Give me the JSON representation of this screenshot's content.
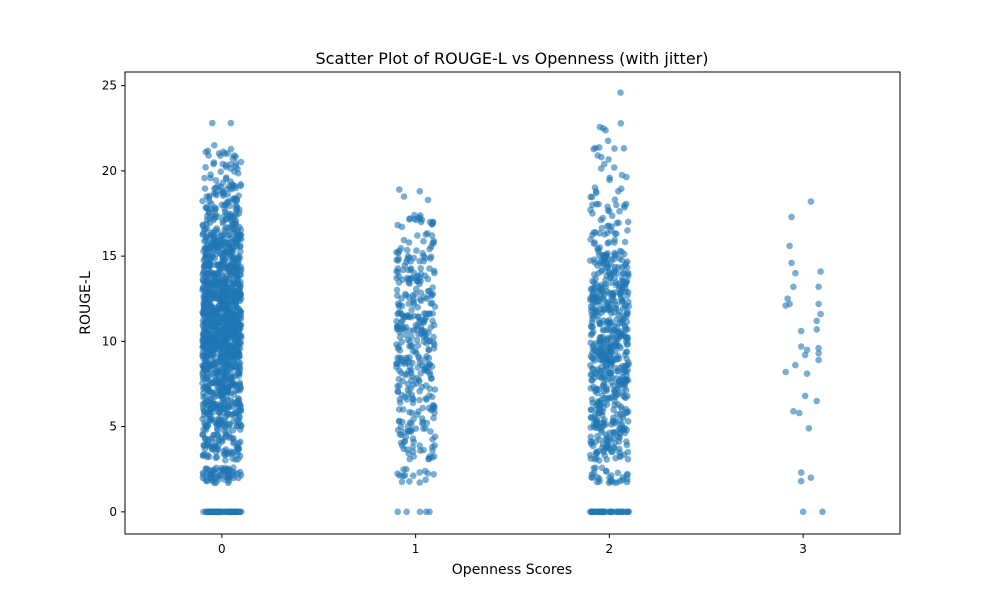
{
  "chart_data": {
    "type": "scatter",
    "title": "Scatter Plot of ROUGE-L vs Openness (with jitter)",
    "xlabel": "Openness Scores",
    "ylabel": "ROUGE-L",
    "x_ticks": [
      0,
      1,
      2,
      3
    ],
    "x_tick_labels": [
      "0",
      "1",
      "2",
      "3"
    ],
    "y_ticks": [
      0,
      5,
      10,
      15,
      20,
      25
    ],
    "y_tick_labels": [
      "0",
      "5",
      "10",
      "15",
      "20",
      "25"
    ],
    "xlim": [
      -0.5,
      3.5
    ],
    "ylim": [
      -1.3,
      25.8
    ],
    "jitter": 0.1,
    "grid": false,
    "marker_color": "#1f77b4",
    "marker_alpha": 0.6,
    "series": [
      {
        "category": 0,
        "count": 1500,
        "y_range": [
          0,
          22.8
        ],
        "zero_count": 60,
        "notable_points": [
          22.8,
          22.8,
          21.5,
          20.9,
          20.4,
          20.4,
          20.4,
          19.3,
          19.1
        ]
      },
      {
        "category": 1,
        "count": 380,
        "y_range": [
          0,
          18.9
        ],
        "zero_count": 5,
        "notable_points": [
          18.9,
          18.8,
          18.5,
          18.3,
          17.4,
          17.0
        ]
      },
      {
        "category": 2,
        "count": 720,
        "y_range": [
          0,
          24.6
        ],
        "zero_count": 40,
        "notable_points": [
          24.6,
          22.5,
          20.4,
          20.2,
          18.8,
          18.7,
          18.0,
          17.9
        ]
      },
      {
        "category": 3,
        "points": [
          [
            3.04,
            18.2
          ],
          [
            2.94,
            17.3
          ],
          [
            2.93,
            15.6
          ],
          [
            2.94,
            14.6
          ],
          [
            3.09,
            14.1
          ],
          [
            2.96,
            14.0
          ],
          [
            2.95,
            13.2
          ],
          [
            3.08,
            13.2
          ],
          [
            2.92,
            12.5
          ],
          [
            2.93,
            12.2
          ],
          [
            2.91,
            12.1
          ],
          [
            3.08,
            12.2
          ],
          [
            3.09,
            11.6
          ],
          [
            3.07,
            11.2
          ],
          [
            3.07,
            10.7
          ],
          [
            2.99,
            10.6
          ],
          [
            3.08,
            9.6
          ],
          [
            2.99,
            9.7
          ],
          [
            3.02,
            9.5
          ],
          [
            3.08,
            9.3
          ],
          [
            3.01,
            9.2
          ],
          [
            3.08,
            8.9
          ],
          [
            2.96,
            8.6
          ],
          [
            2.91,
            8.2
          ],
          [
            3.02,
            8.1
          ],
          [
            3.01,
            6.8
          ],
          [
            3.07,
            6.5
          ],
          [
            2.95,
            5.9
          ],
          [
            2.98,
            5.8
          ],
          [
            3.03,
            4.9
          ],
          [
            2.99,
            2.3
          ],
          [
            3.04,
            2.0
          ],
          [
            2.99,
            1.8
          ],
          [
            3.0,
            0.0
          ],
          [
            3.1,
            0.0
          ]
        ]
      }
    ]
  }
}
